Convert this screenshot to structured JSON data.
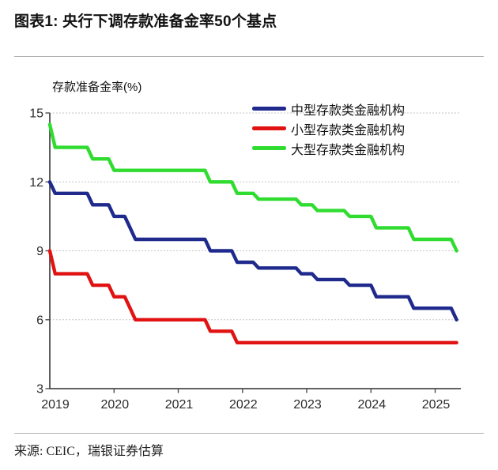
{
  "header": {
    "title": "图表1: 央行下调存款准备金率50个基点"
  },
  "chart": {
    "y_axis_title": "存款准备金率(%)"
  },
  "chart_data": {
    "type": "line",
    "title": "图表1: 央行下调存款准备金率50个基点",
    "ylabel": "存款准备金率(%)",
    "xlabel": "",
    "ylim": [
      3,
      15
    ],
    "xlim_years": [
      2019.0,
      2025.4
    ],
    "yticks": [
      15,
      12,
      9,
      6,
      3
    ],
    "xticks": [
      2019,
      2020,
      2021,
      2022,
      2023,
      2024,
      2025
    ],
    "grid": "horizontal-dotted",
    "legend_position": "top-right-inside",
    "x_resolution": "monthly",
    "end_month": "2025-05",
    "series": [
      {
        "name": "中型存款类金融机构",
        "color": "#1f2a8c",
        "steps": [
          [
            "2019-01",
            12.0
          ],
          [
            "2019-02",
            11.5
          ],
          [
            "2019-09",
            11.0
          ],
          [
            "2020-01",
            10.5
          ],
          [
            "2020-04",
            10.0
          ],
          [
            "2020-05",
            9.5
          ],
          [
            "2021-07",
            9.0
          ],
          [
            "2021-12",
            8.5
          ],
          [
            "2022-04",
            8.25
          ],
          [
            "2022-12",
            8.0
          ],
          [
            "2023-03",
            7.75
          ],
          [
            "2023-09",
            7.5
          ],
          [
            "2024-02",
            7.0
          ],
          [
            "2024-09",
            6.5
          ],
          [
            "2025-05",
            6.0
          ]
        ]
      },
      {
        "name": "小型存款类金融机构",
        "color": "#e11312",
        "steps": [
          [
            "2019-01",
            9.0
          ],
          [
            "2019-02",
            8.0
          ],
          [
            "2019-09",
            7.5
          ],
          [
            "2020-01",
            7.0
          ],
          [
            "2020-04",
            6.5
          ],
          [
            "2020-05",
            6.0
          ],
          [
            "2021-07",
            5.5
          ],
          [
            "2021-12",
            5.0
          ]
        ]
      },
      {
        "name": "大型存款类金融机构",
        "color": "#2fdc2f",
        "steps": [
          [
            "2019-01",
            14.5
          ],
          [
            "2019-02",
            13.5
          ],
          [
            "2019-09",
            13.0
          ],
          [
            "2020-01",
            12.5
          ],
          [
            "2021-07",
            12.0
          ],
          [
            "2021-12",
            11.5
          ],
          [
            "2022-04",
            11.25
          ],
          [
            "2022-12",
            11.0
          ],
          [
            "2023-03",
            10.75
          ],
          [
            "2023-09",
            10.5
          ],
          [
            "2024-02",
            10.0
          ],
          [
            "2024-09",
            9.5
          ],
          [
            "2025-05",
            9.0
          ]
        ]
      }
    ]
  },
  "footer": {
    "source": "来源: CEIC，瑞银证券估算"
  }
}
